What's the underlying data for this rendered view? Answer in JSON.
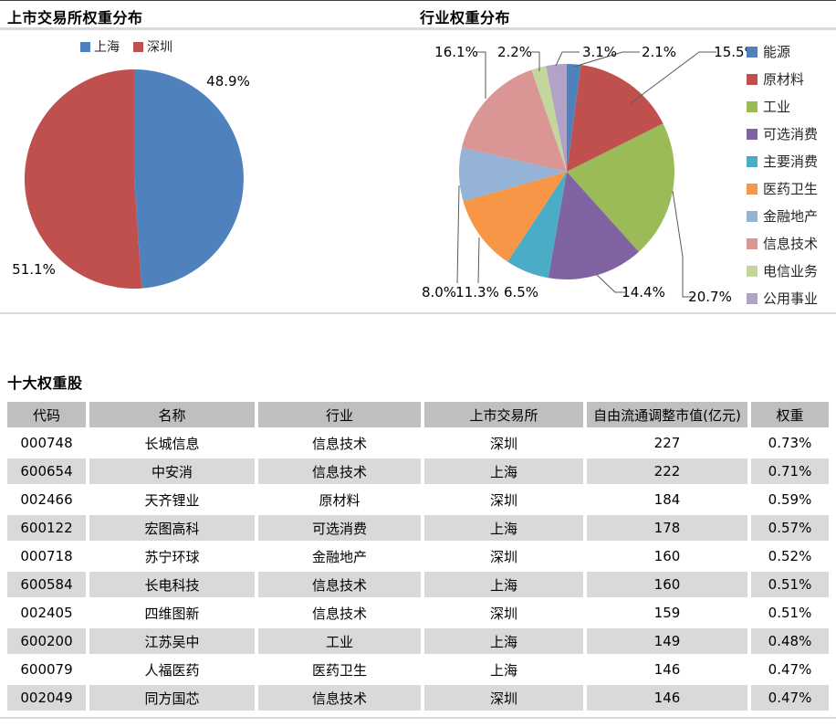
{
  "chart_data": [
    {
      "type": "pie",
      "title": "上市交易所权重分布",
      "labels": [
        "上海",
        "深圳"
      ],
      "values": [
        48.9,
        51.1
      ],
      "data_labels": [
        "48.9%",
        "51.1%"
      ],
      "colors": [
        "#4F81BD",
        "#C0504D"
      ],
      "legend_position": "top",
      "start_angle": "12-oclock",
      "direction": "clockwise"
    },
    {
      "type": "pie",
      "title": "行业权重分布",
      "labels": [
        "能源",
        "原材料",
        "工业",
        "可选消费",
        "主要消费",
        "医药卫生",
        "金融地产",
        "信息技术",
        "电信业务",
        "公用事业"
      ],
      "values": [
        2.1,
        15.5,
        20.7,
        14.4,
        6.5,
        11.3,
        8.0,
        16.1,
        2.2,
        3.1
      ],
      "data_labels": [
        "2.1%",
        "15.5%",
        "20.7%",
        "14.4%",
        "6.5%",
        "11.3%",
        "8.0%",
        "16.1%",
        "2.2%",
        "3.1%"
      ],
      "colors": [
        "#4F81BD",
        "#C0504D",
        "#9BBB59",
        "#8064A2",
        "#4BACC6",
        "#F79646",
        "#95B3D7",
        "#D99694",
        "#C3D69B",
        "#B2A2C7"
      ],
      "legend_position": "right",
      "start_angle": "12-oclock",
      "direction": "clockwise"
    }
  ],
  "table": {
    "title": "十大权重股",
    "columns": [
      "代码",
      "名称",
      "行业",
      "上市交易所",
      "自由流通调整市值(亿元)",
      "权重"
    ],
    "rows": [
      [
        "000748",
        "长城信息",
        "信息技术",
        "深圳",
        "227",
        "0.73%"
      ],
      [
        "600654",
        "中安消",
        "信息技术",
        "上海",
        "222",
        "0.71%"
      ],
      [
        "002466",
        "天齐锂业",
        "原材料",
        "深圳",
        "184",
        "0.59%"
      ],
      [
        "600122",
        "宏图高科",
        "可选消费",
        "上海",
        "178",
        "0.57%"
      ],
      [
        "000718",
        "苏宁环球",
        "金融地产",
        "深圳",
        "160",
        "0.52%"
      ],
      [
        "600584",
        "长电科技",
        "信息技术",
        "上海",
        "160",
        "0.51%"
      ],
      [
        "002405",
        "四维图新",
        "信息技术",
        "深圳",
        "159",
        "0.51%"
      ],
      [
        "600200",
        "江苏吴中",
        "工业",
        "上海",
        "149",
        "0.48%"
      ],
      [
        "600079",
        "人福医药",
        "医药卫生",
        "上海",
        "146",
        "0.47%"
      ],
      [
        "002049",
        "同方国芯",
        "信息技术",
        "深圳",
        "146",
        "0.47%"
      ]
    ]
  },
  "style_colors": {
    "divider": "#D9D9D9",
    "table_header_bg": "#BFBFBF",
    "table_alt_row_bg": "#D9D9D9",
    "leader_line": "#595959",
    "label_text": "#000000"
  }
}
